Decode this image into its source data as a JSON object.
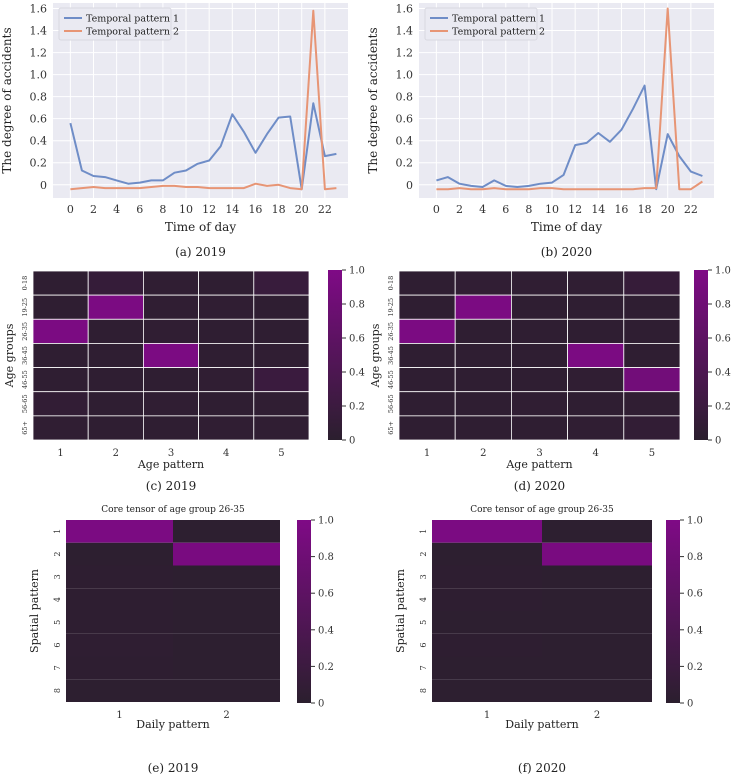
{
  "colors": {
    "pattern1": "#6f8dc7",
    "pattern2": "#e79575",
    "plot_bg": "#eaeaf2",
    "heat_low": "#2b1f2e",
    "heat_high": "#7f0a86",
    "grid_line": "#ffffff"
  },
  "chart_data": [
    {
      "id": "a",
      "type": "line",
      "caption": "(a) 2019",
      "xlabel": "Time of day",
      "ylabel": "The degree of accidents",
      "xticks": [
        0,
        2,
        4,
        6,
        8,
        10,
        12,
        14,
        16,
        18,
        20,
        22
      ],
      "yticks": [
        0,
        0.2,
        0.4,
        0.6,
        0.8,
        1.0,
        1.2,
        1.4,
        1.6
      ],
      "xlim": [
        -1.5,
        24
      ],
      "ylim": [
        -0.12,
        1.65
      ],
      "grid": true,
      "legend": "top-left",
      "x": [
        0,
        1,
        2,
        3,
        4,
        5,
        6,
        7,
        8,
        9,
        10,
        11,
        12,
        13,
        14,
        15,
        16,
        17,
        18,
        19,
        20,
        21,
        22,
        23
      ],
      "series": [
        {
          "name": "Temporal pattern 1",
          "values": [
            0.56,
            0.13,
            0.08,
            0.07,
            0.04,
            0.01,
            0.02,
            0.04,
            0.04,
            0.11,
            0.13,
            0.19,
            0.22,
            0.35,
            0.64,
            0.48,
            0.29,
            0.46,
            0.61,
            0.62,
            -0.04,
            0.74,
            0.26,
            0.28
          ]
        },
        {
          "name": "Temporal pattern 2",
          "values": [
            -0.04,
            -0.03,
            -0.02,
            -0.03,
            -0.03,
            -0.03,
            -0.03,
            -0.02,
            -0.01,
            -0.01,
            -0.02,
            -0.02,
            -0.03,
            -0.03,
            -0.03,
            -0.03,
            0.01,
            -0.01,
            0.0,
            -0.03,
            -0.04,
            1.58,
            -0.04,
            -0.03
          ]
        }
      ]
    },
    {
      "id": "b",
      "type": "line",
      "caption": "(b) 2020",
      "xlabel": "Time of day",
      "ylabel": "The degree of accidents",
      "xticks": [
        0,
        2,
        4,
        6,
        8,
        10,
        12,
        14,
        16,
        18,
        20,
        22
      ],
      "yticks": [
        0,
        0.2,
        0.4,
        0.6,
        0.8,
        1.0,
        1.2,
        1.4,
        1.6
      ],
      "xlim": [
        -1.5,
        24
      ],
      "ylim": [
        -0.12,
        1.65
      ],
      "grid": true,
      "legend": "top-left",
      "x": [
        0,
        1,
        2,
        3,
        4,
        5,
        6,
        7,
        8,
        9,
        10,
        11,
        12,
        13,
        14,
        15,
        16,
        17,
        18,
        19,
        20,
        21,
        22,
        23
      ],
      "series": [
        {
          "name": "Temporal pattern 1",
          "values": [
            0.04,
            0.07,
            0.01,
            -0.01,
            -0.02,
            0.04,
            -0.01,
            -0.02,
            -0.01,
            0.01,
            0.02,
            0.09,
            0.36,
            0.38,
            0.47,
            0.39,
            0.5,
            0.69,
            0.9,
            -0.04,
            0.46,
            0.26,
            0.12,
            0.08
          ]
        },
        {
          "name": "Temporal pattern 2",
          "values": [
            -0.04,
            -0.04,
            -0.03,
            -0.04,
            -0.04,
            -0.03,
            -0.04,
            -0.04,
            -0.04,
            -0.03,
            -0.03,
            -0.04,
            -0.04,
            -0.04,
            -0.04,
            -0.04,
            -0.04,
            -0.04,
            -0.03,
            -0.03,
            1.6,
            -0.04,
            -0.04,
            0.03
          ]
        }
      ]
    },
    {
      "id": "c",
      "type": "heatmap",
      "caption": "(c) 2019",
      "xlabel": "Age pattern",
      "ylabel": "Age groups",
      "xticks": [
        "1",
        "2",
        "3",
        "4",
        "5"
      ],
      "yticks": [
        "0-18",
        "19-25",
        "26-35",
        "36-45",
        "46-55",
        "56-65",
        "65+"
      ],
      "colorbar": {
        "min": 0,
        "max": 1,
        "ticks": [
          "0",
          "0.2",
          "0.4",
          "0.6",
          "0.8",
          "1.0"
        ]
      },
      "values": [
        [
          0.05,
          0.12,
          0.06,
          0.05,
          0.16
        ],
        [
          0.05,
          0.95,
          0.06,
          0.06,
          0.05
        ],
        [
          0.95,
          0.05,
          0.06,
          0.05,
          0.05
        ],
        [
          0.05,
          0.05,
          0.95,
          0.05,
          0.06
        ],
        [
          0.05,
          0.05,
          0.05,
          0.06,
          0.18
        ],
        [
          0.08,
          0.05,
          0.06,
          0.05,
          0.06
        ],
        [
          0.06,
          0.05,
          0.05,
          0.06,
          0.06
        ]
      ]
    },
    {
      "id": "d",
      "type": "heatmap",
      "caption": "(d) 2020",
      "xlabel": "Age pattern",
      "ylabel": "Age groups",
      "xticks": [
        "1",
        "2",
        "3",
        "4",
        "5"
      ],
      "yticks": [
        "0-18",
        "19-25",
        "26-35",
        "36-45",
        "46-55",
        "56-65",
        "65+"
      ],
      "colorbar": {
        "min": 0,
        "max": 1,
        "ticks": [
          "0",
          "0.2",
          "0.4",
          "0.6",
          "0.8",
          "1.0"
        ]
      },
      "values": [
        [
          0.05,
          0.07,
          0.06,
          0.06,
          0.13
        ],
        [
          0.05,
          0.95,
          0.05,
          0.05,
          0.05
        ],
        [
          0.95,
          0.05,
          0.05,
          0.05,
          0.05
        ],
        [
          0.05,
          0.05,
          0.05,
          0.95,
          0.05
        ],
        [
          0.05,
          0.05,
          0.05,
          0.06,
          0.85
        ],
        [
          0.05,
          0.05,
          0.06,
          0.05,
          0.06
        ],
        [
          0.05,
          0.05,
          0.05,
          0.06,
          0.08
        ]
      ]
    },
    {
      "id": "e",
      "type": "heatmap",
      "caption": "(e) 2019",
      "title": "Core tensor of age group 26-35",
      "xlabel": "Daily pattern",
      "ylabel": "Spatial pattern",
      "xticks": [
        "1",
        "2"
      ],
      "yticks": [
        "1",
        "2",
        "3",
        "4",
        "5",
        "6",
        "7",
        "8"
      ],
      "colorbar": {
        "min": 0,
        "max": 1,
        "ticks": [
          "0",
          "0.2",
          "0.4",
          "0.6",
          "0.8",
          "1.0"
        ]
      },
      "values": [
        [
          0.95,
          0.02
        ],
        [
          0.02,
          0.93
        ],
        [
          0.03,
          0.02
        ],
        [
          0.03,
          0.02
        ],
        [
          0.03,
          0.02
        ],
        [
          0.05,
          0.02
        ],
        [
          0.03,
          0.02
        ],
        [
          0.02,
          0.02
        ]
      ]
    },
    {
      "id": "f",
      "type": "heatmap",
      "caption": "(f) 2020",
      "title": "Core tensor of age group 26-35",
      "xlabel": "Daily pattern",
      "ylabel": "Spatial pattern",
      "xticks": [
        "1",
        "2"
      ],
      "yticks": [
        "1",
        "2",
        "3",
        "4",
        "5",
        "6",
        "7",
        "8"
      ],
      "colorbar": {
        "min": 0,
        "max": 1,
        "ticks": [
          "0",
          "0.2",
          "0.4",
          "0.6",
          "0.8",
          "1.0"
        ]
      },
      "values": [
        [
          0.95,
          0.02
        ],
        [
          0.02,
          0.93
        ],
        [
          0.03,
          0.02
        ],
        [
          0.03,
          0.02
        ],
        [
          0.02,
          0.02
        ],
        [
          0.03,
          0.02
        ],
        [
          0.02,
          0.02
        ],
        [
          0.02,
          0.02
        ]
      ]
    }
  ]
}
